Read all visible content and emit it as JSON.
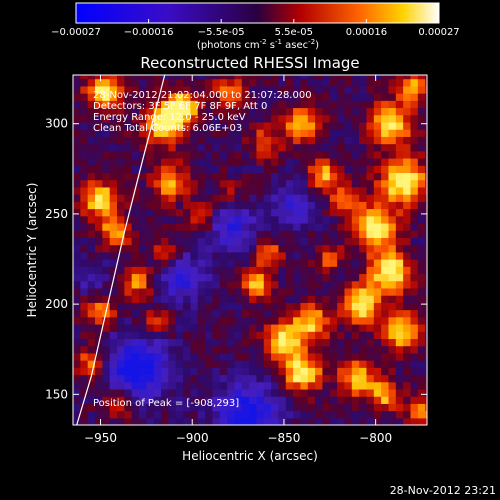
{
  "chart_data": {
    "type": "heatmap",
    "title": "Reconstructed RHESSI Image",
    "xlabel": "Heliocentric X (arcsec)",
    "ylabel": "Heliocentric Y (arcsec)",
    "xlim": [
      -965,
      -772
    ],
    "ylim": [
      133,
      327
    ],
    "xticks": [
      -950,
      -900,
      -850,
      -800
    ],
    "yticks": [
      150,
      200,
      250,
      300
    ],
    "colorbar": {
      "min": -0.00027,
      "max": 0.00027,
      "ticks": [
        "-0.00027",
        "-0.00016",
        "-5.5e-05",
        "5.5e-05",
        "0.00016",
        "0.00027"
      ],
      "units_main": "(photons cm",
      "units_sup1": "-2",
      "units_mid1": " s",
      "units_sup2": "-1",
      "units_mid2": " asec",
      "units_sup3": "-2",
      "units_end": ")"
    },
    "annotations": {
      "line1": "28-Nov-2012 21:02:04.000 to 21:07:28.000",
      "line2": "Detectors: 3F 5F 6F 7F 8F 9F, Att 0",
      "line3": "Energy Range: 12.0 - 25.0 keV",
      "line4": "Clean    Total Counts: 6.06E+03",
      "peak": "Position of Peak = [-908,293]"
    },
    "peak_position": [
      -908,
      293
    ],
    "limb_points": [
      [
        -963,
        133
      ],
      [
        -955,
        160
      ],
      [
        -946,
        200
      ],
      [
        -937,
        240
      ],
      [
        -927,
        280
      ],
      [
        -918,
        315
      ],
      [
        -915,
        327
      ]
    ],
    "timestamp": "28-Nov-2012 23:21"
  }
}
